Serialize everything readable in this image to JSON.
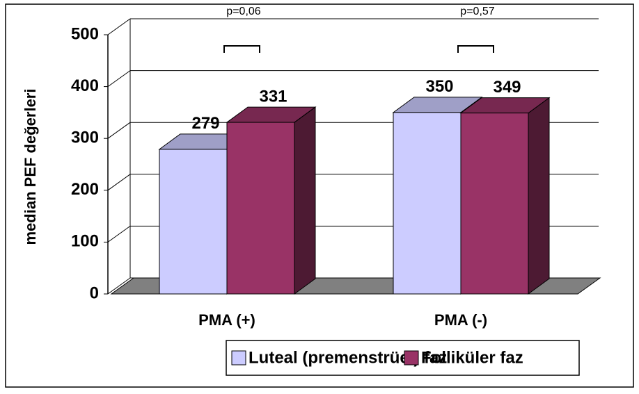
{
  "chart_data": {
    "type": "bar3d",
    "y_label": "median PEF değerleri",
    "categories": [
      "PMA (+)",
      "PMA (-)"
    ],
    "series": [
      {
        "name": "Luteal (premenstrüel) faz",
        "color": "#ccccff",
        "values": [
          279,
          350
        ]
      },
      {
        "name": "Folliküler faz",
        "color": "#993366",
        "values": [
          331,
          349
        ]
      }
    ],
    "annotations": [
      "p=0,06",
      "p=0,57"
    ],
    "ylim": [
      0,
      500
    ],
    "yticks": [
      0,
      100,
      200,
      300,
      400,
      500
    ],
    "grid": true
  }
}
